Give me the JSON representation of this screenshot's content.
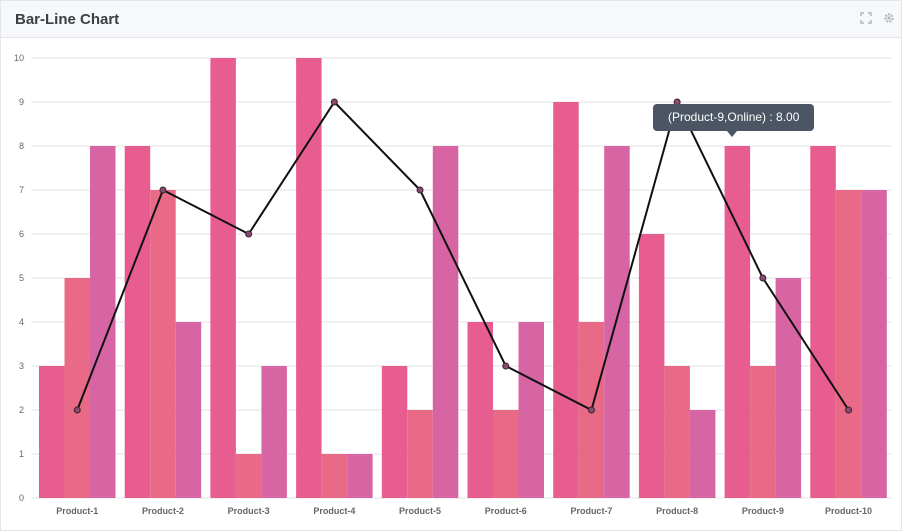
{
  "header": {
    "title": "Bar-Line Chart",
    "expand_icon": "expand-icon",
    "settings_icon": "gear-icon"
  },
  "tooltip": {
    "text": "(Product-9,Online) : 8.00"
  },
  "colors": {
    "bar_series_1": "#e85d8f",
    "bar_series_2": "#e86a86",
    "bar_series_3": "#d764a3",
    "line": "#111111",
    "grid": "#e3e3e3"
  },
  "chart_data": {
    "type": "bar",
    "title": "Bar-Line Chart",
    "categories": [
      "Product-1",
      "Product-2",
      "Product-3",
      "Product-4",
      "Product-5",
      "Product-6",
      "Product-7",
      "Product-8",
      "Product-9",
      "Product-10"
    ],
    "ylim": [
      0,
      10
    ],
    "yticks": [
      "0",
      "1",
      "2",
      "3",
      "4",
      "5",
      "6",
      "7",
      "8",
      "9",
      "10"
    ],
    "grid": true,
    "series": [
      {
        "kind": "bar",
        "values": [
          3,
          8,
          10,
          10,
          3,
          4,
          9,
          6,
          8,
          8
        ]
      },
      {
        "kind": "bar",
        "values": [
          5,
          7,
          1,
          1,
          2,
          2,
          4,
          3,
          3,
          7
        ]
      },
      {
        "kind": "bar",
        "values": [
          8,
          4,
          3,
          1,
          8,
          4,
          8,
          2,
          5,
          7
        ]
      },
      {
        "kind": "line",
        "values": [
          2,
          7,
          6,
          9,
          7,
          3,
          2,
          9,
          5,
          2
        ]
      }
    ]
  }
}
